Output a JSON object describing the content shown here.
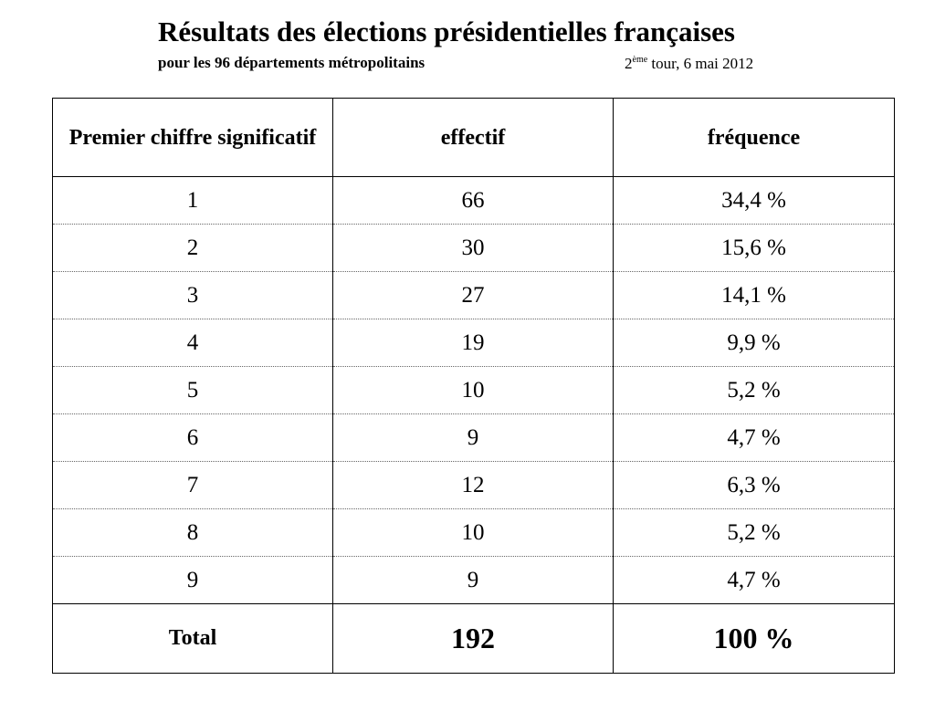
{
  "header": {
    "title": "Résultats des élections présidentielles françaises",
    "subtitle": "pour les 96 départements métropolitains",
    "round_number": "2",
    "round_suffix": "ème",
    "round_rest": " tour, 6 mai 2012"
  },
  "table": {
    "columns": [
      "Premier chiffre significatif",
      "effectif",
      "fréquence"
    ],
    "rows": [
      {
        "digit": "1",
        "count": "66",
        "freq": "34,4 %"
      },
      {
        "digit": "2",
        "count": "30",
        "freq": "15,6 %"
      },
      {
        "digit": "3",
        "count": "27",
        "freq": "14,1 %"
      },
      {
        "digit": "4",
        "count": "19",
        "freq": "9,9 %"
      },
      {
        "digit": "5",
        "count": "10",
        "freq": "5,2 %"
      },
      {
        "digit": "6",
        "count": "9",
        "freq": "4,7 %"
      },
      {
        "digit": "7",
        "count": "12",
        "freq": "6,3 %"
      },
      {
        "digit": "8",
        "count": "10",
        "freq": "5,2 %"
      },
      {
        "digit": "9",
        "count": "9",
        "freq": "4,7 %"
      }
    ],
    "total": {
      "label": "Total",
      "count": "192",
      "freq": "100 %"
    }
  }
}
